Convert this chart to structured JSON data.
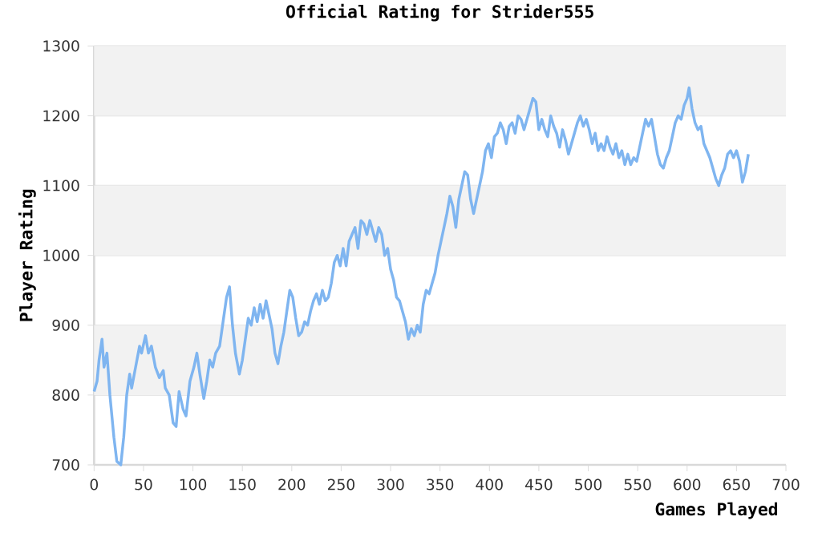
{
  "chart_data": {
    "type": "line",
    "title": "Official Rating for Strider555",
    "xlabel": "Games Played",
    "ylabel": "Player Rating",
    "xlim": [
      0,
      700
    ],
    "xticks": [
      0,
      50,
      100,
      150,
      200,
      250,
      300,
      350,
      400,
      450,
      500,
      550,
      600,
      650,
      700
    ],
    "ylim": [
      700,
      1300
    ],
    "yticks": [
      700,
      800,
      900,
      1000,
      1100,
      1200,
      1300
    ],
    "grid": "y",
    "marker": "none",
    "line_style": "solid",
    "x": [
      0,
      3,
      5,
      8,
      10,
      13,
      16,
      20,
      23,
      27,
      30,
      33,
      36,
      38,
      42,
      46,
      48,
      52,
      55,
      58,
      62,
      66,
      70,
      72,
      76,
      80,
      83,
      86,
      90,
      93,
      97,
      101,
      104,
      107,
      111,
      114,
      117,
      120,
      123,
      127,
      130,
      134,
      137,
      140,
      143,
      147,
      150,
      153,
      156,
      159,
      162,
      165,
      168,
      171,
      174,
      177,
      180,
      183,
      186,
      189,
      192,
      195,
      198,
      201,
      204,
      207,
      210,
      213,
      216,
      219,
      222,
      225,
      228,
      231,
      234,
      237,
      240,
      243,
      246,
      249,
      252,
      255,
      258,
      261,
      264,
      267,
      270,
      273,
      276,
      279,
      282,
      285,
      288,
      291,
      294,
      297,
      300,
      303,
      306,
      309,
      312,
      315,
      318,
      321,
      324,
      327,
      330,
      333,
      336,
      339,
      342,
      345,
      348,
      351,
      354,
      357,
      360,
      363,
      366,
      369,
      372,
      375,
      378,
      381,
      384,
      387,
      390,
      393,
      396,
      399,
      402,
      405,
      408,
      411,
      414,
      417,
      420,
      423,
      426,
      429,
      432,
      435,
      438,
      441,
      444,
      447,
      450,
      453,
      456,
      459,
      462,
      465,
      468,
      471,
      474,
      477,
      480,
      483,
      486,
      489,
      492,
      495,
      498,
      501,
      504,
      507,
      510,
      513,
      516,
      519,
      522,
      525,
      528,
      531,
      534,
      537,
      540,
      543,
      546,
      549,
      552,
      555,
      558,
      561,
      564,
      567,
      570,
      573,
      576,
      579,
      582,
      585,
      588,
      591,
      594,
      597,
      600,
      602,
      605,
      608,
      611,
      614,
      617,
      620,
      623,
      626,
      629,
      632,
      635,
      638,
      641,
      644,
      647,
      650,
      653,
      656,
      659,
      662
    ],
    "series": [
      {
        "color": "#7fb5f0",
        "values": [
          805,
          820,
          850,
          880,
          840,
          860,
          800,
          740,
          705,
          700,
          740,
          800,
          830,
          810,
          840,
          870,
          860,
          885,
          860,
          870,
          840,
          825,
          835,
          810,
          800,
          760,
          755,
          805,
          780,
          770,
          820,
          840,
          860,
          830,
          795,
          820,
          850,
          840,
          860,
          870,
          900,
          940,
          955,
          900,
          860,
          830,
          850,
          880,
          910,
          900,
          925,
          905,
          930,
          910,
          935,
          915,
          895,
          860,
          845,
          870,
          890,
          920,
          950,
          940,
          910,
          885,
          890,
          905,
          900,
          920,
          935,
          945,
          930,
          950,
          935,
          940,
          960,
          990,
          1000,
          985,
          1010,
          985,
          1020,
          1030,
          1040,
          1010,
          1050,
          1045,
          1030,
          1050,
          1035,
          1020,
          1040,
          1030,
          1000,
          1010,
          980,
          965,
          940,
          935,
          920,
          905,
          880,
          895,
          885,
          900,
          890,
          930,
          950,
          945,
          960,
          975,
          1000,
          1020,
          1040,
          1060,
          1085,
          1070,
          1040,
          1080,
          1100,
          1120,
          1115,
          1080,
          1060,
          1080,
          1100,
          1120,
          1150,
          1160,
          1140,
          1170,
          1175,
          1190,
          1180,
          1160,
          1185,
          1190,
          1175,
          1200,
          1195,
          1180,
          1195,
          1210,
          1225,
          1220,
          1180,
          1195,
          1180,
          1170,
          1200,
          1185,
          1175,
          1155,
          1180,
          1165,
          1145,
          1160,
          1175,
          1190,
          1200,
          1185,
          1195,
          1180,
          1160,
          1175,
          1150,
          1160,
          1150,
          1170,
          1155,
          1145,
          1160,
          1140,
          1150,
          1130,
          1145,
          1130,
          1140,
          1135,
          1155,
          1175,
          1195,
          1185,
          1195,
          1170,
          1145,
          1130,
          1125,
          1140,
          1150,
          1170,
          1190,
          1200,
          1195,
          1215,
          1225,
          1240,
          1210,
          1190,
          1180,
          1185,
          1160,
          1150,
          1140,
          1125,
          1110,
          1100,
          1115,
          1125,
          1145,
          1150,
          1140,
          1150,
          1135,
          1105,
          1120,
          1145
        ]
      }
    ]
  }
}
